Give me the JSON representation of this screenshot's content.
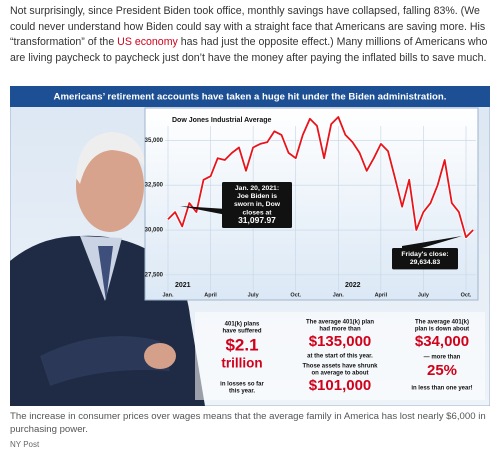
{
  "article": {
    "paragraph": {
      "before": "Not surprisingly, since President Biden took office, monthly savings have collapsed, falling 83%. (We could never understand how Biden could say with a straight face that Americans are saving more. His “transformation” of the ",
      "link": "US economy",
      "after": " has had just the opposite effect.) Many millions of Americans who are living paycheck to paycheck just don’t have the money after paying the inflated bills to save much."
    },
    "infographic_title": "Americans’ retirement accounts have taken a huge hit under the Biden administration.",
    "stats": [
      {
        "lead": [
          "401(k) plans",
          "have suffered"
        ],
        "figure": [
          "$2.1",
          "trillion"
        ],
        "tail": [
          "in losses so far",
          "this year."
        ]
      },
      {
        "lead": [
          "The average 401(k) plan",
          "had more than"
        ],
        "figure": [
          "$135,000"
        ],
        "tail": [
          "at the start of this year."
        ],
        "lead2": [
          "Those assets have shrunk",
          "on average to about"
        ],
        "figure2": [
          "$101,000"
        ]
      },
      {
        "lead": [
          "The average 401(k)",
          "plan is down about"
        ],
        "figure": [
          "$34,000"
        ],
        "tail": [
          "— more than"
        ],
        "figure2": [
          "25%"
        ],
        "tail2": [
          "in less than one year!"
        ]
      }
    ],
    "caption": "The increase in consumer prices over wages means that the average family in America has lost nearly $6,000 in purchasing power.",
    "credit": "NY Post"
  },
  "chart_data": {
    "type": "line",
    "title": "Dow Jones Industrial Average",
    "categories": [
      "Jan.",
      null,
      null,
      null,
      null,
      null,
      "April",
      null,
      null,
      null,
      null,
      null,
      "July",
      null,
      null,
      null,
      null,
      null,
      "Oct.",
      null,
      null,
      null,
      null,
      null,
      "Jan.",
      null,
      null,
      null,
      null,
      null,
      "April",
      null,
      null,
      null,
      null,
      null,
      "July",
      null,
      null,
      null,
      null,
      null,
      "Oct.",
      null
    ],
    "values": [
      30600,
      31000,
      30200,
      31500,
      31000,
      32800,
      33000,
      34000,
      33900,
      34300,
      34600,
      33300,
      34600,
      34800,
      34900,
      35500,
      35300,
      34300,
      34000,
      35300,
      36200,
      35800,
      34000,
      35900,
      36300,
      35300,
      34900,
      34300,
      33300,
      34000,
      34800,
      34400,
      32900,
      31300,
      32800,
      30000,
      31000,
      31500,
      32500,
      33900,
      31500,
      31000,
      29600,
      30000
    ],
    "color": "#e8141c",
    "year_labels": [
      "2021",
      "2022"
    ],
    "ylim": [
      26100,
      36800
    ],
    "yticks": [
      {
        "value": 27500,
        "label": "27,500"
      },
      {
        "value": 30000,
        "label": "30,000"
      },
      {
        "value": 32500,
        "label": "32,500"
      },
      {
        "value": 35000,
        "label": "35,000"
      }
    ],
    "grid": true,
    "annotations": [
      {
        "lines": [
          "Jan. 20, 2021:",
          "Joe Biden is",
          "sworn in, Dow",
          "closes at",
          "31,097.97"
        ]
      },
      {
        "lines": [
          "Friday's close:",
          "29,634.83"
        ]
      }
    ]
  }
}
